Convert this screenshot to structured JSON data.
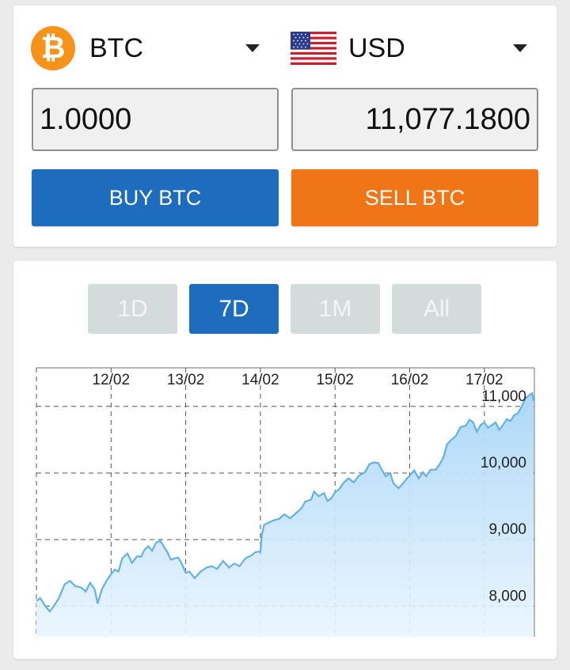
{
  "converter": {
    "from_currency": {
      "code": "BTC",
      "icon": "bitcoin-icon",
      "color": "#f7931a"
    },
    "to_currency": {
      "code": "USD",
      "icon": "us-flag-icon"
    },
    "from_amount": "1.0000",
    "to_amount": "11,077.1800",
    "buy_label": "BUY BTC",
    "sell_label": "SELL BTC",
    "buy_color": "#1e6cbd",
    "sell_color": "#f07516"
  },
  "range_tabs": [
    {
      "label": "1D",
      "active": false
    },
    {
      "label": "7D",
      "active": true
    },
    {
      "label": "1M",
      "active": false
    },
    {
      "label": "All",
      "active": false
    }
  ],
  "chart_data": {
    "type": "area",
    "x_ticks": [
      "12/02",
      "13/02",
      "14/02",
      "15/02",
      "16/02",
      "17/02"
    ],
    "y_ticks": [
      "11,000",
      "10,000",
      "9,000",
      "8,000"
    ],
    "ylim": [
      7540,
      11580
    ],
    "xlim": [
      0,
      6.67
    ],
    "grid": true,
    "line_color": "#64b0e8",
    "series": [
      {
        "points": [
          [
            0.0,
            8080
          ],
          [
            0.05,
            8120
          ],
          [
            0.12,
            8000
          ],
          [
            0.18,
            7920
          ],
          [
            0.25,
            8030
          ],
          [
            0.3,
            8120
          ],
          [
            0.38,
            8330
          ],
          [
            0.45,
            8380
          ],
          [
            0.52,
            8300
          ],
          [
            0.6,
            8280
          ],
          [
            0.66,
            8220
          ],
          [
            0.72,
            8350
          ],
          [
            0.78,
            8250
          ],
          [
            0.82,
            8040
          ],
          [
            0.88,
            8260
          ],
          [
            0.95,
            8400
          ],
          [
            1.0,
            8480
          ],
          [
            1.05,
            8550
          ],
          [
            1.1,
            8520
          ],
          [
            1.15,
            8720
          ],
          [
            1.22,
            8790
          ],
          [
            1.28,
            8650
          ],
          [
            1.35,
            8750
          ],
          [
            1.4,
            8740
          ],
          [
            1.45,
            8850
          ],
          [
            1.5,
            8900
          ],
          [
            1.55,
            8830
          ],
          [
            1.6,
            8950
          ],
          [
            1.66,
            8980
          ],
          [
            1.7,
            8910
          ],
          [
            1.75,
            8820
          ],
          [
            1.8,
            8700
          ],
          [
            1.86,
            8720
          ],
          [
            1.9,
            8730
          ],
          [
            1.95,
            8630
          ],
          [
            2.0,
            8500
          ],
          [
            2.05,
            8520
          ],
          [
            2.12,
            8420
          ],
          [
            2.2,
            8520
          ],
          [
            2.28,
            8580
          ],
          [
            2.35,
            8600
          ],
          [
            2.42,
            8560
          ],
          [
            2.5,
            8680
          ],
          [
            2.58,
            8580
          ],
          [
            2.65,
            8640
          ],
          [
            2.72,
            8600
          ],
          [
            2.8,
            8720
          ],
          [
            2.88,
            8760
          ],
          [
            2.93,
            8810
          ],
          [
            2.98,
            8820
          ],
          [
            3.0,
            8810
          ],
          [
            3.02,
            9080
          ],
          [
            3.05,
            9220
          ],
          [
            3.1,
            9250
          ],
          [
            3.18,
            9290
          ],
          [
            3.25,
            9310
          ],
          [
            3.32,
            9380
          ],
          [
            3.4,
            9320
          ],
          [
            3.48,
            9400
          ],
          [
            3.55,
            9470
          ],
          [
            3.6,
            9570
          ],
          [
            3.68,
            9600
          ],
          [
            3.72,
            9720
          ],
          [
            3.78,
            9650
          ],
          [
            3.85,
            9700
          ],
          [
            3.9,
            9580
          ],
          [
            3.95,
            9620
          ],
          [
            4.0,
            9710
          ],
          [
            4.05,
            9750
          ],
          [
            4.12,
            9860
          ],
          [
            4.18,
            9920
          ],
          [
            4.25,
            9860
          ],
          [
            4.32,
            9960
          ],
          [
            4.4,
            10010
          ],
          [
            4.46,
            10130
          ],
          [
            4.52,
            10160
          ],
          [
            4.58,
            10150
          ],
          [
            4.62,
            10060
          ],
          [
            4.68,
            9950
          ],
          [
            4.74,
            10000
          ],
          [
            4.78,
            9850
          ],
          [
            4.85,
            9770
          ],
          [
            4.9,
            9830
          ],
          [
            4.95,
            9900
          ],
          [
            5.0,
            9960
          ],
          [
            5.06,
            10040
          ],
          [
            5.12,
            9920
          ],
          [
            5.18,
            10010
          ],
          [
            5.22,
            9950
          ],
          [
            5.28,
            10050
          ],
          [
            5.35,
            10050
          ],
          [
            5.4,
            10130
          ],
          [
            5.45,
            10230
          ],
          [
            5.5,
            10430
          ],
          [
            5.56,
            10500
          ],
          [
            5.62,
            10560
          ],
          [
            5.68,
            10690
          ],
          [
            5.75,
            10710
          ],
          [
            5.8,
            10800
          ],
          [
            5.85,
            10760
          ],
          [
            5.9,
            10620
          ],
          [
            5.95,
            10720
          ],
          [
            6.0,
            10760
          ],
          [
            6.05,
            10680
          ],
          [
            6.1,
            10720
          ],
          [
            6.15,
            10760
          ],
          [
            6.2,
            10650
          ],
          [
            6.25,
            10720
          ],
          [
            6.3,
            10810
          ],
          [
            6.35,
            10780
          ],
          [
            6.4,
            10870
          ],
          [
            6.45,
            10900
          ],
          [
            6.5,
            11000
          ],
          [
            6.55,
            11120
          ],
          [
            6.6,
            11170
          ],
          [
            6.64,
            11200
          ],
          [
            6.66,
            11080
          ]
        ]
      }
    ]
  }
}
